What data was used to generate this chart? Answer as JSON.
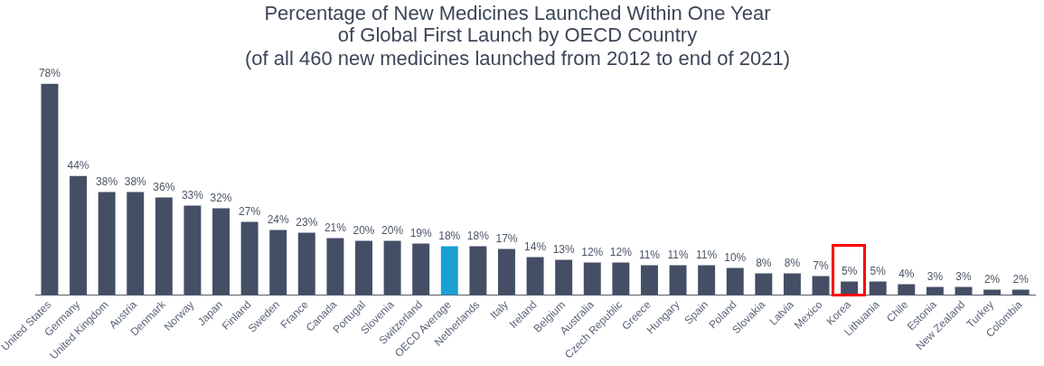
{
  "chart_data": {
    "type": "bar",
    "title": "Percentage of New Medicines Launched Within One Year\nof Global First Launch by OECD Country",
    "subtitle": "(of all 460 new medicines launched from 2012 to end of 2021)",
    "categories": [
      "United States",
      "Germany",
      "United Kingdom",
      "Austria",
      "Denmark",
      "Norway",
      "Japan",
      "Finland",
      "Sweden",
      "France",
      "Canada",
      "Portugal",
      "Slovenia",
      "Switzerland",
      "OECD Average",
      "Netherlands",
      "Italy",
      "Ireland",
      "Belgium",
      "Australia",
      "Czech Republic",
      "Greece",
      "Hungary",
      "Spain",
      "Poland",
      "Slovakia",
      "Latvia",
      "Mexico",
      "Korea",
      "Lithuania",
      "Chile",
      "Estonia",
      "New Zealand",
      "Turkey",
      "Colombia"
    ],
    "values": [
      78,
      44,
      38,
      38,
      36,
      33,
      32,
      27,
      24,
      23,
      21,
      20,
      20,
      19,
      18,
      18,
      17,
      14,
      13,
      12,
      12,
      11,
      11,
      11,
      10,
      8,
      8,
      7,
      5,
      5,
      4,
      3,
      3,
      2,
      2
    ],
    "value_labels": [
      "78%",
      "44%",
      "38%",
      "38%",
      "36%",
      "33%",
      "32%",
      "27%",
      "24%",
      "23%",
      "21%",
      "20%",
      "20%",
      "19%",
      "18%",
      "18%",
      "17%",
      "14%",
      "13%",
      "12%",
      "12%",
      "11%",
      "11%",
      "11%",
      "10%",
      "8%",
      "8%",
      "7%",
      "5%",
      "5%",
      "4%",
      "3%",
      "3%",
      "2%",
      "2%"
    ],
    "colors": [
      "#444f66",
      "#444f66",
      "#444f66",
      "#444f66",
      "#444f66",
      "#444f66",
      "#444f66",
      "#444f66",
      "#444f66",
      "#444f66",
      "#444f66",
      "#444f66",
      "#444f66",
      "#444f66",
      "#1aa0d2",
      "#444f66",
      "#444f66",
      "#444f66",
      "#444f66",
      "#444f66",
      "#444f66",
      "#444f66",
      "#444f66",
      "#444f66",
      "#444f66",
      "#444f66",
      "#444f66",
      "#444f66",
      "#444f66",
      "#444f66",
      "#444f66",
      "#444f66",
      "#444f66",
      "#444f66",
      "#444f66"
    ],
    "grid": false,
    "legend": false
  }
}
